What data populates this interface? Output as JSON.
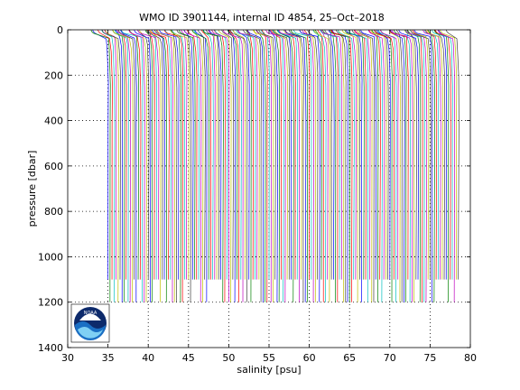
{
  "chart_data": {
    "type": "line",
    "title": "WMO ID 3901144, internal ID 4854, 25–Oct–2018",
    "xlabel": "salinity [psu]",
    "ylabel": "pressure [dbar]",
    "xlim": [
      30,
      80
    ],
    "ylim": [
      1400,
      0
    ],
    "y_reversed": true,
    "grid": true,
    "grid_style": "dotted",
    "xticks": [
      30,
      35,
      40,
      45,
      50,
      55,
      60,
      65,
      70,
      75,
      80
    ],
    "yticks": [
      0,
      200,
      400,
      600,
      800,
      1000,
      1200,
      1400
    ],
    "profile_count": 175,
    "profile_x_start": 35.0,
    "profile_x_end": 78.5,
    "profile_offset_step": 0.25,
    "surface_salinity_range": [
      32.4,
      34.6
    ],
    "deep_salinity_range": [
      34.9,
      78.2
    ],
    "max_depth_values": [
      1100,
      1200
    ],
    "series_colors": [
      "#0000ff",
      "#008000",
      "#ff0000",
      "#00bfbf",
      "#bf00bf",
      "#bfbf00",
      "#404040"
    ],
    "logo": {
      "name": "NOAA",
      "colors": {
        "dark": "#0d2a6b",
        "mid": "#1a6fc4",
        "light": "#7fd0f4"
      }
    }
  }
}
